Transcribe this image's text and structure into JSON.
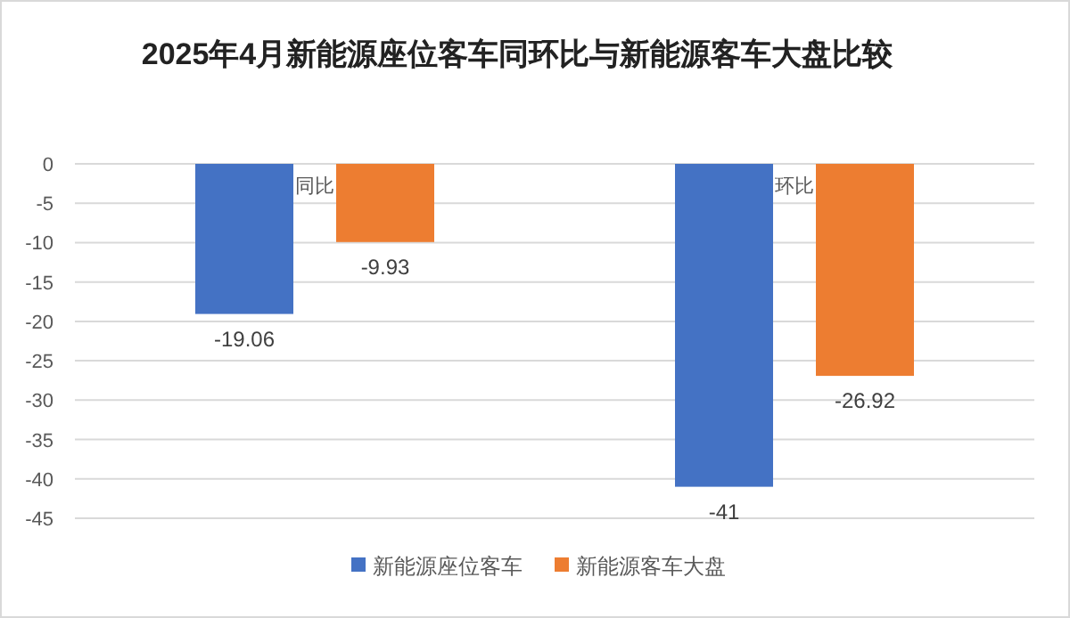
{
  "chart_data": {
    "type": "bar",
    "title": "2025年4月新能源座位客车同环比与新能源客车大盘比较",
    "categories": [
      "同比",
      "环比"
    ],
    "series": [
      {
        "name": "新能源座位客车",
        "color": "#4472c4",
        "values": [
          -19.06,
          -41
        ]
      },
      {
        "name": "新能源客车大盘",
        "color": "#ed7d31",
        "values": [
          -9.93,
          -26.92
        ]
      }
    ],
    "ylim": [
      -45,
      0
    ],
    "yticks": [
      0,
      -5,
      -10,
      -15,
      -20,
      -25,
      -30,
      -35,
      -40,
      -45
    ],
    "grid": "y",
    "legend": "bottom",
    "data_labels": true
  }
}
